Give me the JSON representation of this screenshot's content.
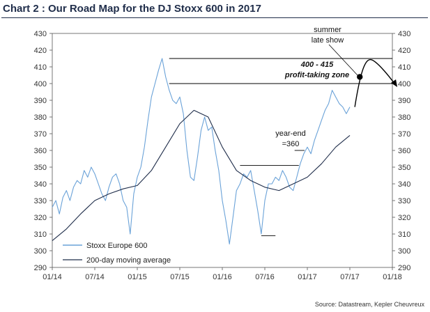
{
  "title": "Chart 2 : Our Road Map for the DJ Stoxx 600 in 2017",
  "source": "Source: Datastream, Kepler Cheuvreux",
  "chart_data": {
    "type": "line",
    "x_tick_labels": [
      "01/14",
      "07/14",
      "01/15",
      "07/15",
      "01/16",
      "07/16",
      "01/17",
      "07/17",
      "01/18"
    ],
    "ylim": [
      290,
      430
    ],
    "y_ticks": [
      290,
      300,
      310,
      320,
      330,
      340,
      350,
      360,
      370,
      380,
      390,
      400,
      410,
      420,
      430
    ],
    "legend": {
      "position": "bottom-left",
      "entries": [
        "Stoxx Europe 600",
        "200-day moving average"
      ]
    },
    "colors": {
      "stoxx": "#6aa2d8",
      "ma": "#1f2d4a",
      "rules": "#000000"
    },
    "series": [
      {
        "name": "Stoxx Europe 600",
        "x_months": [
          0,
          0.5,
          1,
          1.5,
          2,
          2.5,
          3,
          3.5,
          4,
          4.5,
          5,
          5.5,
          6,
          6.5,
          7,
          7.5,
          8,
          8.5,
          9,
          9.5,
          10,
          10.5,
          11,
          11.5,
          12,
          12.5,
          13,
          13.5,
          14,
          14.5,
          15,
          15.5,
          16,
          16.5,
          17,
          17.5,
          18,
          18.5,
          19,
          19.5,
          20,
          20.5,
          21,
          21.5,
          22,
          22.5,
          23,
          23.5,
          24,
          24.5,
          25,
          25.5,
          26,
          26.5,
          27,
          27.5,
          28,
          28.5,
          29,
          29.5,
          30,
          30.5,
          31,
          31.5,
          32,
          32.5,
          33,
          33.5,
          34,
          34.5,
          35,
          35.5,
          36,
          36.5,
          37,
          37.5,
          38,
          38.5,
          39,
          39.5,
          40,
          40.5,
          41,
          41.5,
          42
        ],
        "values": [
          326,
          330,
          322,
          332,
          336,
          330,
          338,
          342,
          340,
          348,
          344,
          350,
          346,
          340,
          334,
          330,
          338,
          344,
          346,
          340,
          330,
          326,
          310,
          334,
          344,
          350,
          362,
          378,
          392,
          400,
          408,
          415,
          404,
          396,
          390,
          388,
          392,
          382,
          360,
          344,
          342,
          356,
          372,
          380,
          372,
          374,
          360,
          348,
          330,
          318,
          304,
          320,
          336,
          340,
          346,
          344,
          348,
          336,
          324,
          310,
          330,
          340,
          340,
          344,
          342,
          348,
          344,
          338,
          336,
          344,
          352,
          358,
          362,
          358,
          366,
          372,
          378,
          384,
          388,
          396,
          392,
          388,
          386,
          382,
          386
        ]
      },
      {
        "name": "200-day moving average",
        "x_months": [
          0,
          2,
          4,
          6,
          8,
          10,
          12,
          14,
          16,
          18,
          20,
          22,
          24,
          26,
          28,
          30,
          32,
          34,
          36,
          38,
          40,
          42
        ],
        "values": [
          306,
          313,
          322,
          330,
          334,
          337,
          339,
          348,
          362,
          376,
          384,
          380,
          362,
          348,
          342,
          338,
          336,
          340,
          344,
          352,
          362,
          369
        ]
      }
    ],
    "annotations": {
      "summer_line1": "summer",
      "summer_line2": "late show",
      "zone_range": "400 - 415",
      "zone_label": "profit-taking zone",
      "yearend_line1": "year-end",
      "yearend_line2": "=360"
    },
    "reference_lines": {
      "upper_level": 415,
      "lower_level": 400,
      "resistance_level": 351,
      "support_level": 309,
      "yearend_target": 360
    }
  }
}
